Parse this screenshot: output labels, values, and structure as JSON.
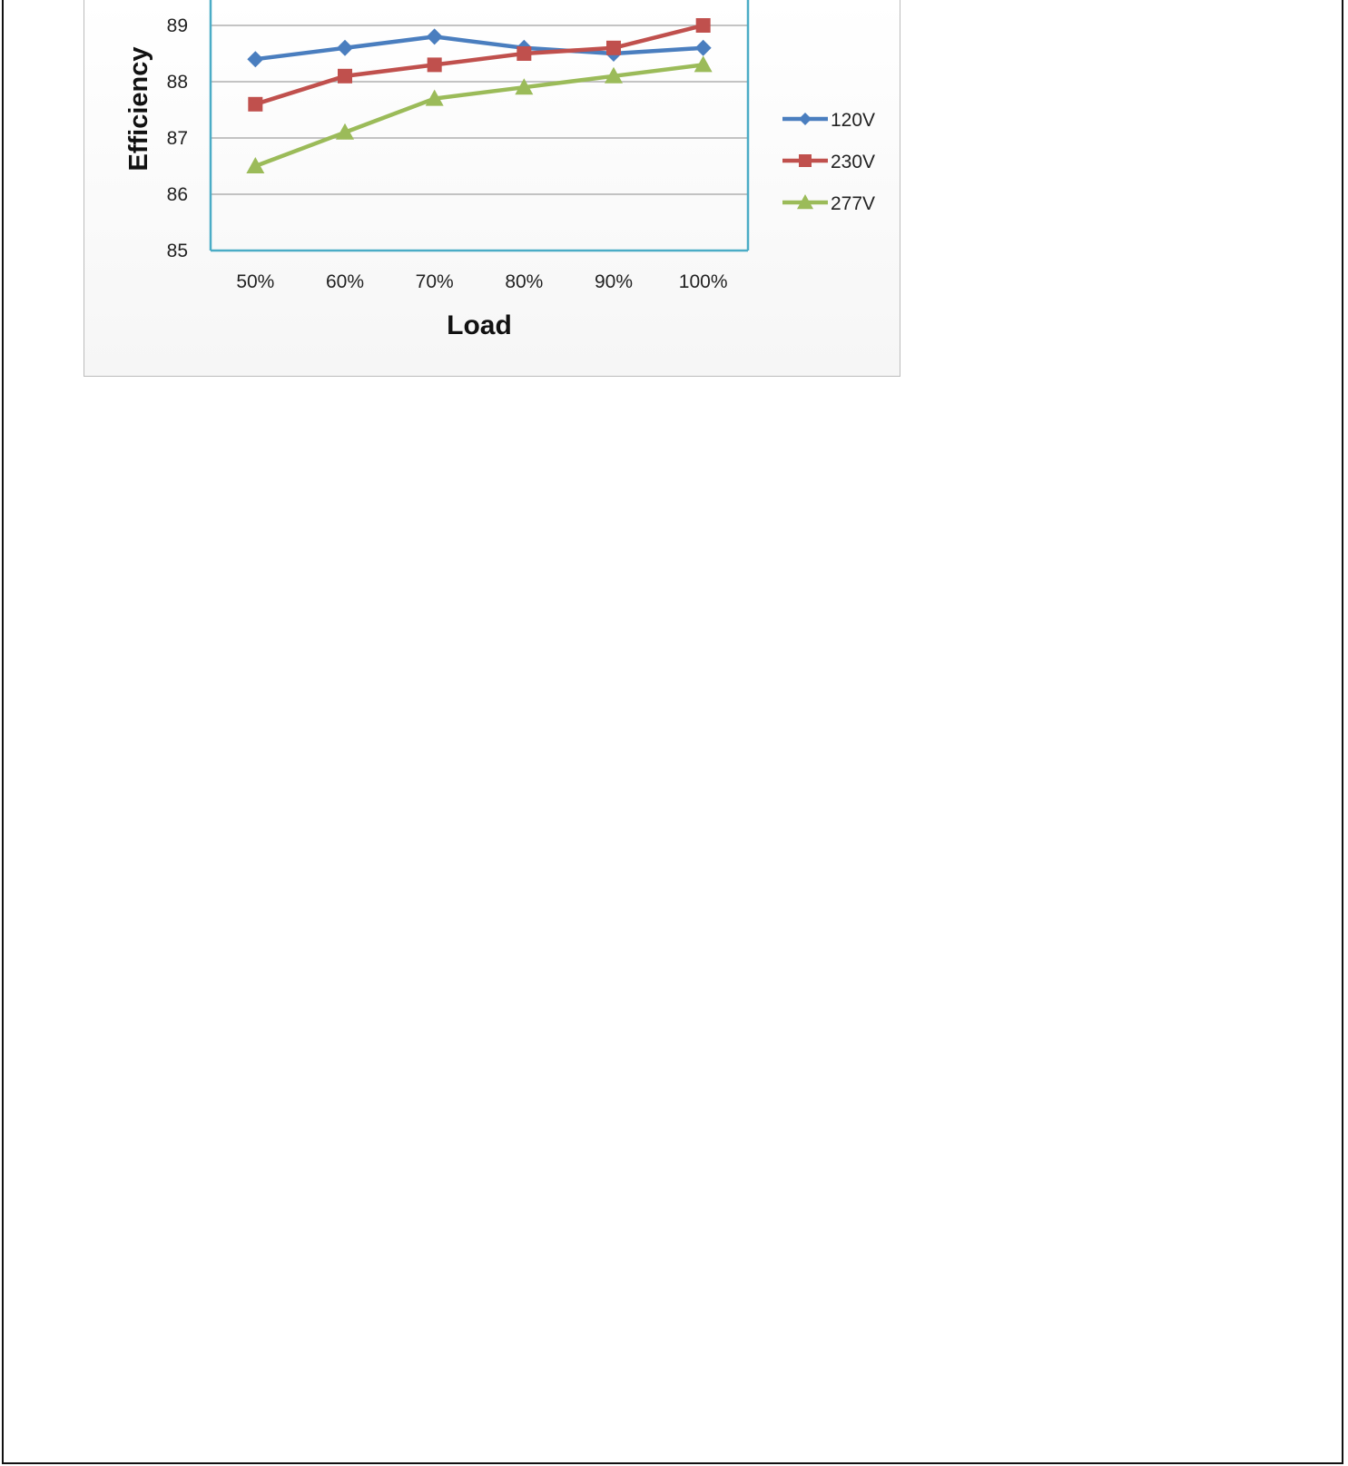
{
  "chart_data": {
    "type": "line",
    "categories": [
      "50%",
      "60%",
      "70%",
      "80%",
      "90%",
      "100%"
    ],
    "xlabel": "Load",
    "ylabel": "Efficiency",
    "ylim": [
      85,
      89
    ],
    "yticks": [
      "85",
      "86",
      "87",
      "88",
      "89"
    ],
    "grid": "horizontal",
    "legend": "right",
    "series": [
      {
        "name": "120V",
        "color": "#4a7ebf",
        "marker": "diamond",
        "values": [
          88.4,
          88.6,
          88.8,
          88.6,
          88.5,
          88.6
        ]
      },
      {
        "name": "230V",
        "color": "#c0504d",
        "marker": "square",
        "values": [
          87.6,
          88.1,
          88.3,
          88.5,
          88.6,
          89.0
        ]
      },
      {
        "name": "277V",
        "color": "#9bbb59",
        "marker": "triangle",
        "values": [
          86.5,
          87.1,
          87.7,
          87.9,
          88.1,
          88.3
        ]
      }
    ],
    "plot_border_color": "#4bacc6",
    "grid_color": "#b0b0b0"
  }
}
